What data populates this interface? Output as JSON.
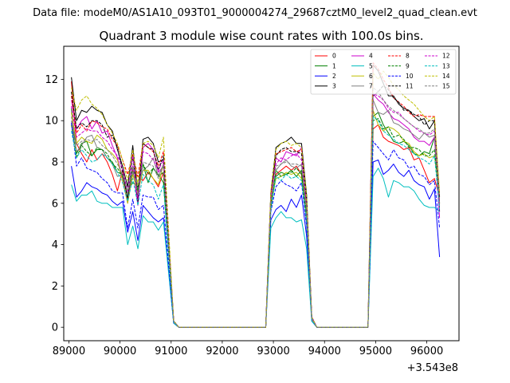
{
  "suptitle": "Data file: modeM0/AS1A10_093T01_9000004274_29687cztM0_level2_quad_clean.evt",
  "chart_data": {
    "type": "line",
    "title": "Quadrant 3 module wise count rates with 100.0s bins.",
    "xlabel": "",
    "ylabel": "",
    "x_offset_label": "+3.543e8",
    "xlim": [
      88900,
      96630
    ],
    "ylim": [
      -0.65,
      13.6
    ],
    "x_ticks": [
      89000,
      90000,
      91000,
      92000,
      93000,
      94000,
      95000,
      96000
    ],
    "x_tick_labels": [
      "89000",
      "90000",
      "91000",
      "92000",
      "93000",
      "94000",
      "95000",
      "96000"
    ],
    "y_ticks": [
      0,
      2,
      4,
      6,
      8,
      10,
      12
    ],
    "y_tick_labels": [
      "0",
      "2",
      "4",
      "6",
      "8",
      "10",
      "12"
    ],
    "grid": false,
    "legend_position": "top-right",
    "bin_size_s": 100,
    "segments": [
      {
        "x_start": 89050,
        "count": 19
      },
      {
        "x_start": 91050,
        "count": 18
      },
      {
        "x_start": 92850,
        "count": 10
      },
      {
        "x_start": 93850,
        "count": 10
      },
      {
        "x_start": 94850,
        "count": 15
      }
    ],
    "series": [
      {
        "name": "0",
        "color": "#ff0000",
        "dash": "solid",
        "values": [
          11.9,
          8.9,
          8.4,
          8.0,
          8.6,
          8.1,
          8.4,
          8.0,
          7.4,
          6.6,
          7.6,
          6.2,
          7.6,
          7.3,
          7.1,
          7.5,
          7.2,
          6.8,
          7.5,
          0.3,
          0,
          0,
          0,
          0,
          0,
          0,
          0,
          0,
          0,
          0,
          0,
          0,
          0,
          0,
          0,
          0,
          0,
          0,
          5.8,
          7.4,
          7.6,
          7.8,
          7.6,
          7.8,
          7.4,
          5.1,
          0.4,
          0,
          0,
          0,
          0,
          0,
          0,
          0,
          0,
          0,
          0,
          0,
          9.6,
          9.8,
          9.2,
          9.0,
          8.9,
          8.8,
          8.6,
          8.7,
          8.1,
          8.2,
          7.6,
          7.0,
          7.2,
          6.3
        ]
      },
      {
        "name": "1",
        "color": "#008000",
        "dash": "solid",
        "values": [
          10.6,
          8.4,
          8.9,
          9.0,
          8.3,
          8.6,
          8.6,
          8.2,
          8.0,
          7.5,
          7.4,
          6.6,
          7.0,
          6.8,
          7.9,
          7.0,
          7.7,
          7.4,
          7.0,
          0.3,
          0,
          0,
          0,
          0,
          0,
          0,
          0,
          0,
          0,
          0,
          0,
          0,
          0,
          0,
          0,
          0,
          0,
          0,
          6.0,
          7.3,
          7.5,
          7.4,
          7.6,
          7.3,
          7.6,
          5.0,
          0.4,
          0,
          0,
          0,
          0,
          0,
          0,
          0,
          0,
          0,
          0,
          0,
          10.2,
          10.4,
          9.8,
          9.4,
          9.0,
          8.9,
          9.0,
          8.8,
          8.4,
          8.3,
          8.5,
          8.4,
          9.2,
          6.0
        ]
      },
      {
        "name": "2",
        "color": "#0000ff",
        "dash": "solid",
        "values": [
          7.8,
          6.3,
          6.6,
          7.0,
          6.8,
          6.7,
          6.5,
          6.4,
          6.1,
          5.9,
          6.1,
          4.6,
          5.6,
          4.2,
          5.9,
          5.6,
          5.3,
          5.1,
          5.3,
          0.2,
          0,
          0,
          0,
          0,
          0,
          0,
          0,
          0,
          0,
          0,
          0,
          0,
          0,
          0,
          0,
          0,
          0,
          0,
          5.2,
          5.7,
          5.9,
          5.6,
          6.2,
          5.8,
          6.4,
          4.4,
          0.3,
          0,
          0,
          0,
          0,
          0,
          0,
          0,
          0,
          0,
          0,
          0,
          8.0,
          8.1,
          7.4,
          7.6,
          7.9,
          7.5,
          7.3,
          7.6,
          7.1,
          6.9,
          6.8,
          6.2,
          6.7,
          3.4
        ]
      },
      {
        "name": "3",
        "color": "#000000",
        "dash": "solid",
        "values": [
          12.1,
          10.0,
          10.5,
          10.4,
          10.7,
          10.5,
          10.4,
          9.8,
          9.5,
          8.6,
          7.8,
          6.8,
          8.8,
          6.4,
          9.1,
          9.2,
          8.9,
          8.0,
          8.1,
          0.3,
          0,
          0,
          0,
          0,
          0,
          0,
          0,
          0,
          0,
          0,
          0,
          0,
          0,
          0,
          0,
          0,
          0,
          0,
          6.5,
          8.7,
          8.9,
          9.0,
          9.2,
          8.9,
          8.9,
          6.4,
          0.5,
          0,
          0,
          0,
          0,
          0,
          0,
          0,
          0,
          0,
          0,
          0,
          12.7,
          12.4,
          11.8,
          11.2,
          11.2,
          10.8,
          10.6,
          10.5,
          10.2,
          10.0,
          10.1,
          9.6,
          10.0,
          5.6
        ]
      },
      {
        "name": "4",
        "color": "#cc00cc",
        "dash": "solid",
        "values": [
          11.0,
          9.6,
          10.0,
          10.2,
          9.6,
          10.0,
          9.4,
          9.5,
          8.8,
          8.2,
          7.2,
          6.0,
          7.8,
          5.9,
          8.7,
          8.9,
          8.6,
          7.5,
          7.8,
          0.3,
          0,
          0,
          0,
          0,
          0,
          0,
          0,
          0,
          0,
          0,
          0,
          0,
          0,
          0,
          0,
          0,
          0,
          0,
          6.3,
          8.2,
          8.0,
          8.5,
          8.4,
          8.3,
          8.7,
          6.0,
          0.5,
          0,
          0,
          0,
          0,
          0,
          0,
          0,
          0,
          0,
          0,
          0,
          11.3,
          11.0,
          10.8,
          10.4,
          10.1,
          10.0,
          9.8,
          9.6,
          9.2,
          9.0,
          9.0,
          8.8,
          9.2,
          5.3
        ]
      },
      {
        "name": "5",
        "color": "#00bfbf",
        "dash": "solid",
        "values": [
          6.9,
          6.1,
          6.4,
          6.4,
          6.6,
          6.1,
          6.0,
          6.0,
          5.8,
          5.8,
          5.8,
          4.0,
          4.9,
          3.8,
          5.4,
          5.1,
          5.1,
          4.7,
          5.1,
          0.2,
          0,
          0,
          0,
          0,
          0,
          0,
          0,
          0,
          0,
          0,
          0,
          0,
          0,
          0,
          0,
          0,
          0,
          0,
          4.8,
          5.3,
          5.6,
          5.3,
          5.3,
          5.1,
          5.2,
          3.8,
          0.3,
          0,
          0,
          0,
          0,
          0,
          0,
          0,
          0,
          0,
          0,
          0,
          7.3,
          7.7,
          7.2,
          6.3,
          7.1,
          7.0,
          6.8,
          6.8,
          6.6,
          6.2,
          5.9,
          5.8,
          5.8,
          5.6
        ]
      },
      {
        "name": "6",
        "color": "#bfbf00",
        "dash": "solid",
        "values": [
          10.4,
          8.9,
          9.2,
          9.0,
          8.9,
          9.3,
          9.1,
          8.6,
          8.4,
          8.1,
          7.1,
          6.0,
          7.4,
          6.5,
          7.6,
          7.6,
          7.2,
          6.9,
          7.9,
          0.3,
          0,
          0,
          0,
          0,
          0,
          0,
          0,
          0,
          0,
          0,
          0,
          0,
          0,
          0,
          0,
          0,
          0,
          0,
          5.9,
          7.2,
          7.3,
          7.5,
          7.4,
          7.5,
          7.2,
          5.4,
          0.4,
          0,
          0,
          0,
          0,
          0,
          0,
          0,
          0,
          0,
          0,
          0,
          10.5,
          9.8,
          9.5,
          9.7,
          9.6,
          9.4,
          9.0,
          8.9,
          8.5,
          8.3,
          8.4,
          8.2,
          8.3,
          6.4
        ]
      },
      {
        "name": "7",
        "color": "#808080",
        "dash": "solid",
        "values": [
          10.0,
          8.5,
          8.8,
          9.2,
          9.3,
          8.7,
          8.6,
          8.2,
          7.9,
          7.3,
          7.4,
          6.6,
          7.5,
          6.9,
          7.6,
          7.8,
          8.2,
          7.3,
          7.9,
          0.3,
          0,
          0,
          0,
          0,
          0,
          0,
          0,
          0,
          0,
          0,
          0,
          0,
          0,
          0,
          0,
          0,
          0,
          0,
          5.9,
          7.6,
          7.9,
          8.1,
          7.8,
          7.7,
          7.9,
          5.6,
          0.4,
          0,
          0,
          0,
          0,
          0,
          0,
          0,
          0,
          0,
          0,
          0,
          11.0,
          10.4,
          10.3,
          10.5,
          9.9,
          9.8,
          9.6,
          9.5,
          9.3,
          9.1,
          9.4,
          9.2,
          9.3,
          5.9
        ]
      },
      {
        "name": "8",
        "color": "#ff0000",
        "dash": "dashed",
        "values": [
          11.2,
          9.4,
          9.8,
          9.5,
          10.0,
          9.9,
          9.7,
          9.6,
          9.1,
          8.8,
          8.1,
          7.4,
          8.4,
          7.3,
          8.9,
          8.7,
          8.5,
          7.8,
          8.5,
          0.3,
          0,
          0,
          0,
          0,
          0,
          0,
          0,
          0,
          0,
          0,
          0,
          0,
          0,
          0,
          0,
          0,
          0,
          0,
          6.2,
          8.4,
          8.5,
          8.6,
          8.7,
          8.5,
          8.6,
          6.1,
          0.5,
          0,
          0,
          0,
          0,
          0,
          0,
          0,
          0,
          0,
          0,
          0,
          12.8,
          12.5,
          12.0,
          11.6,
          11.1,
          10.9,
          10.7,
          10.4,
          10.2,
          10.3,
          10.2,
          10.2,
          10.2,
          6.0
        ]
      },
      {
        "name": "9",
        "color": "#008000",
        "dash": "dashed",
        "values": [
          9.8,
          8.2,
          8.8,
          8.5,
          8.3,
          8.7,
          8.6,
          8.4,
          7.9,
          7.7,
          7.3,
          6.3,
          7.7,
          6.6,
          7.9,
          7.4,
          7.7,
          7.3,
          7.5,
          0.3,
          0,
          0,
          0,
          0,
          0,
          0,
          0,
          0,
          0,
          0,
          0,
          0,
          0,
          0,
          0,
          0,
          0,
          0,
          5.8,
          7.6,
          7.3,
          7.4,
          7.5,
          7.7,
          7.4,
          5.5,
          0.4,
          0,
          0,
          0,
          0,
          0,
          0,
          0,
          0,
          0,
          0,
          0,
          10.0,
          10.1,
          9.6,
          9.7,
          9.2,
          9.3,
          9.1,
          8.7,
          8.7,
          8.6,
          8.3,
          8.3,
          8.6,
          6.2
        ]
      },
      {
        "name": "10",
        "color": "#0000ff",
        "dash": "dashed",
        "values": [
          9.9,
          7.8,
          8.2,
          7.7,
          7.6,
          7.5,
          7.2,
          7.0,
          6.6,
          6.5,
          6.5,
          4.8,
          6.2,
          4.8,
          6.4,
          6.3,
          6.3,
          5.7,
          5.9,
          0.2,
          0,
          0,
          0,
          0,
          0,
          0,
          0,
          0,
          0,
          0,
          0,
          0,
          0,
          0,
          0,
          0,
          0,
          0,
          5.6,
          6.8,
          7.1,
          6.9,
          6.8,
          6.6,
          7.0,
          4.9,
          0.4,
          0,
          0,
          0,
          0,
          0,
          0,
          0,
          0,
          0,
          0,
          0,
          9.0,
          8.7,
          8.4,
          8.1,
          8.6,
          8.2,
          8.1,
          7.7,
          7.8,
          7.4,
          7.3,
          6.9,
          7.1,
          4.8
        ]
      },
      {
        "name": "11",
        "color": "#000000",
        "dash": "dashed",
        "values": [
          11.4,
          9.6,
          9.9,
          9.7,
          10.0,
          10.0,
          9.8,
          9.2,
          9.3,
          8.7,
          7.5,
          6.2,
          8.3,
          6.1,
          8.9,
          8.7,
          8.6,
          7.6,
          8.3,
          0.3,
          0,
          0,
          0,
          0,
          0,
          0,
          0,
          0,
          0,
          0,
          0,
          0,
          0,
          0,
          0,
          0,
          0,
          0,
          6.5,
          8.3,
          8.6,
          8.7,
          8.5,
          8.5,
          8.4,
          6.1,
          0.5,
          0,
          0,
          0,
          0,
          0,
          0,
          0,
          0,
          0,
          0,
          0,
          11.2,
          11.4,
          11.7,
          11.5,
          11.1,
          10.9,
          10.5,
          10.5,
          10.3,
          10.2,
          9.8,
          10.0,
          10.0,
          6.3
        ]
      },
      {
        "name": "12",
        "color": "#cc00cc",
        "dash": "dashed",
        "values": [
          10.7,
          9.2,
          9.4,
          9.6,
          9.5,
          9.5,
          9.2,
          9.0,
          8.6,
          8.3,
          7.7,
          6.5,
          8.3,
          6.2,
          8.5,
          8.4,
          8.1,
          7.6,
          8.1,
          0.3,
          0,
          0,
          0,
          0,
          0,
          0,
          0,
          0,
          0,
          0,
          0,
          0,
          0,
          0,
          0,
          0,
          0,
          0,
          6.4,
          7.9,
          8.2,
          8.1,
          8.3,
          8.4,
          8.1,
          5.8,
          0.5,
          0,
          0,
          0,
          0,
          0,
          0,
          0,
          0,
          0,
          0,
          0,
          11.3,
          11.2,
          11.0,
          10.6,
          10.4,
          10.4,
          10.1,
          9.9,
          9.7,
          9.5,
          9.4,
          9.3,
          9.5,
          6.1
        ]
      },
      {
        "name": "13",
        "color": "#00bfbf",
        "dash": "dashed",
        "values": [
          9.5,
          8.2,
          8.6,
          8.3,
          8.0,
          8.1,
          8.4,
          8.2,
          7.9,
          7.5,
          7.0,
          6.1,
          7.2,
          5.9,
          7.4,
          7.1,
          6.9,
          6.2,
          6.9,
          0.2,
          0,
          0,
          0,
          0,
          0,
          0,
          0,
          0,
          0,
          0,
          0,
          0,
          0,
          0,
          0,
          0,
          0,
          0,
          5.7,
          7.3,
          7.1,
          7.4,
          7.2,
          7.3,
          7.1,
          5.2,
          0.4,
          0,
          0,
          0,
          0,
          0,
          0,
          0,
          0,
          0,
          0,
          0,
          10.2,
          10.0,
          9.5,
          9.3,
          9.1,
          8.9,
          8.8,
          8.6,
          8.4,
          8.2,
          8.1,
          7.9,
          8.3,
          5.7
        ]
      },
      {
        "name": "14",
        "color": "#bfbf00",
        "dash": "dashed",
        "values": [
          11.6,
          10.5,
          11.0,
          11.2,
          10.8,
          10.6,
          10.3,
          9.8,
          9.4,
          8.9,
          8.1,
          7.1,
          8.6,
          6.9,
          8.9,
          9.0,
          8.8,
          8.2,
          9.2,
          0.3,
          0,
          0,
          0,
          0,
          0,
          0,
          0,
          0,
          0,
          0,
          0,
          0,
          0,
          0,
          0,
          0,
          0,
          0,
          6.6,
          8.6,
          8.9,
          9.0,
          8.8,
          8.9,
          8.7,
          6.3,
          0.5,
          0,
          0,
          0,
          0,
          0,
          0,
          0,
          0,
          0,
          0,
          0,
          12.3,
          12.0,
          12.4,
          12.1,
          11.7,
          11.5,
          11.2,
          11.0,
          10.8,
          10.5,
          10.2,
          10.0,
          10.2,
          6.5
        ]
      },
      {
        "name": "15",
        "color": "#808080",
        "dash": "dashed",
        "values": [
          10.2,
          8.8,
          9.0,
          9.1,
          9.0,
          9.1,
          8.8,
          8.6,
          8.3,
          7.9,
          7.4,
          6.5,
          7.8,
          6.4,
          8.0,
          7.9,
          7.8,
          7.2,
          7.8,
          0.3,
          0,
          0,
          0,
          0,
          0,
          0,
          0,
          0,
          0,
          0,
          0,
          0,
          0,
          0,
          0,
          0,
          0,
          0,
          6.1,
          7.8,
          7.9,
          8.0,
          7.9,
          7.9,
          7.8,
          5.7,
          0.4,
          0,
          0,
          0,
          0,
          0,
          0,
          0,
          0,
          0,
          0,
          0,
          11.6,
          11.4,
          11.0,
          10.7,
          10.5,
          10.3,
          10.1,
          9.9,
          9.7,
          9.6,
          9.4,
          9.4,
          9.6,
          6.0
        ]
      }
    ]
  }
}
